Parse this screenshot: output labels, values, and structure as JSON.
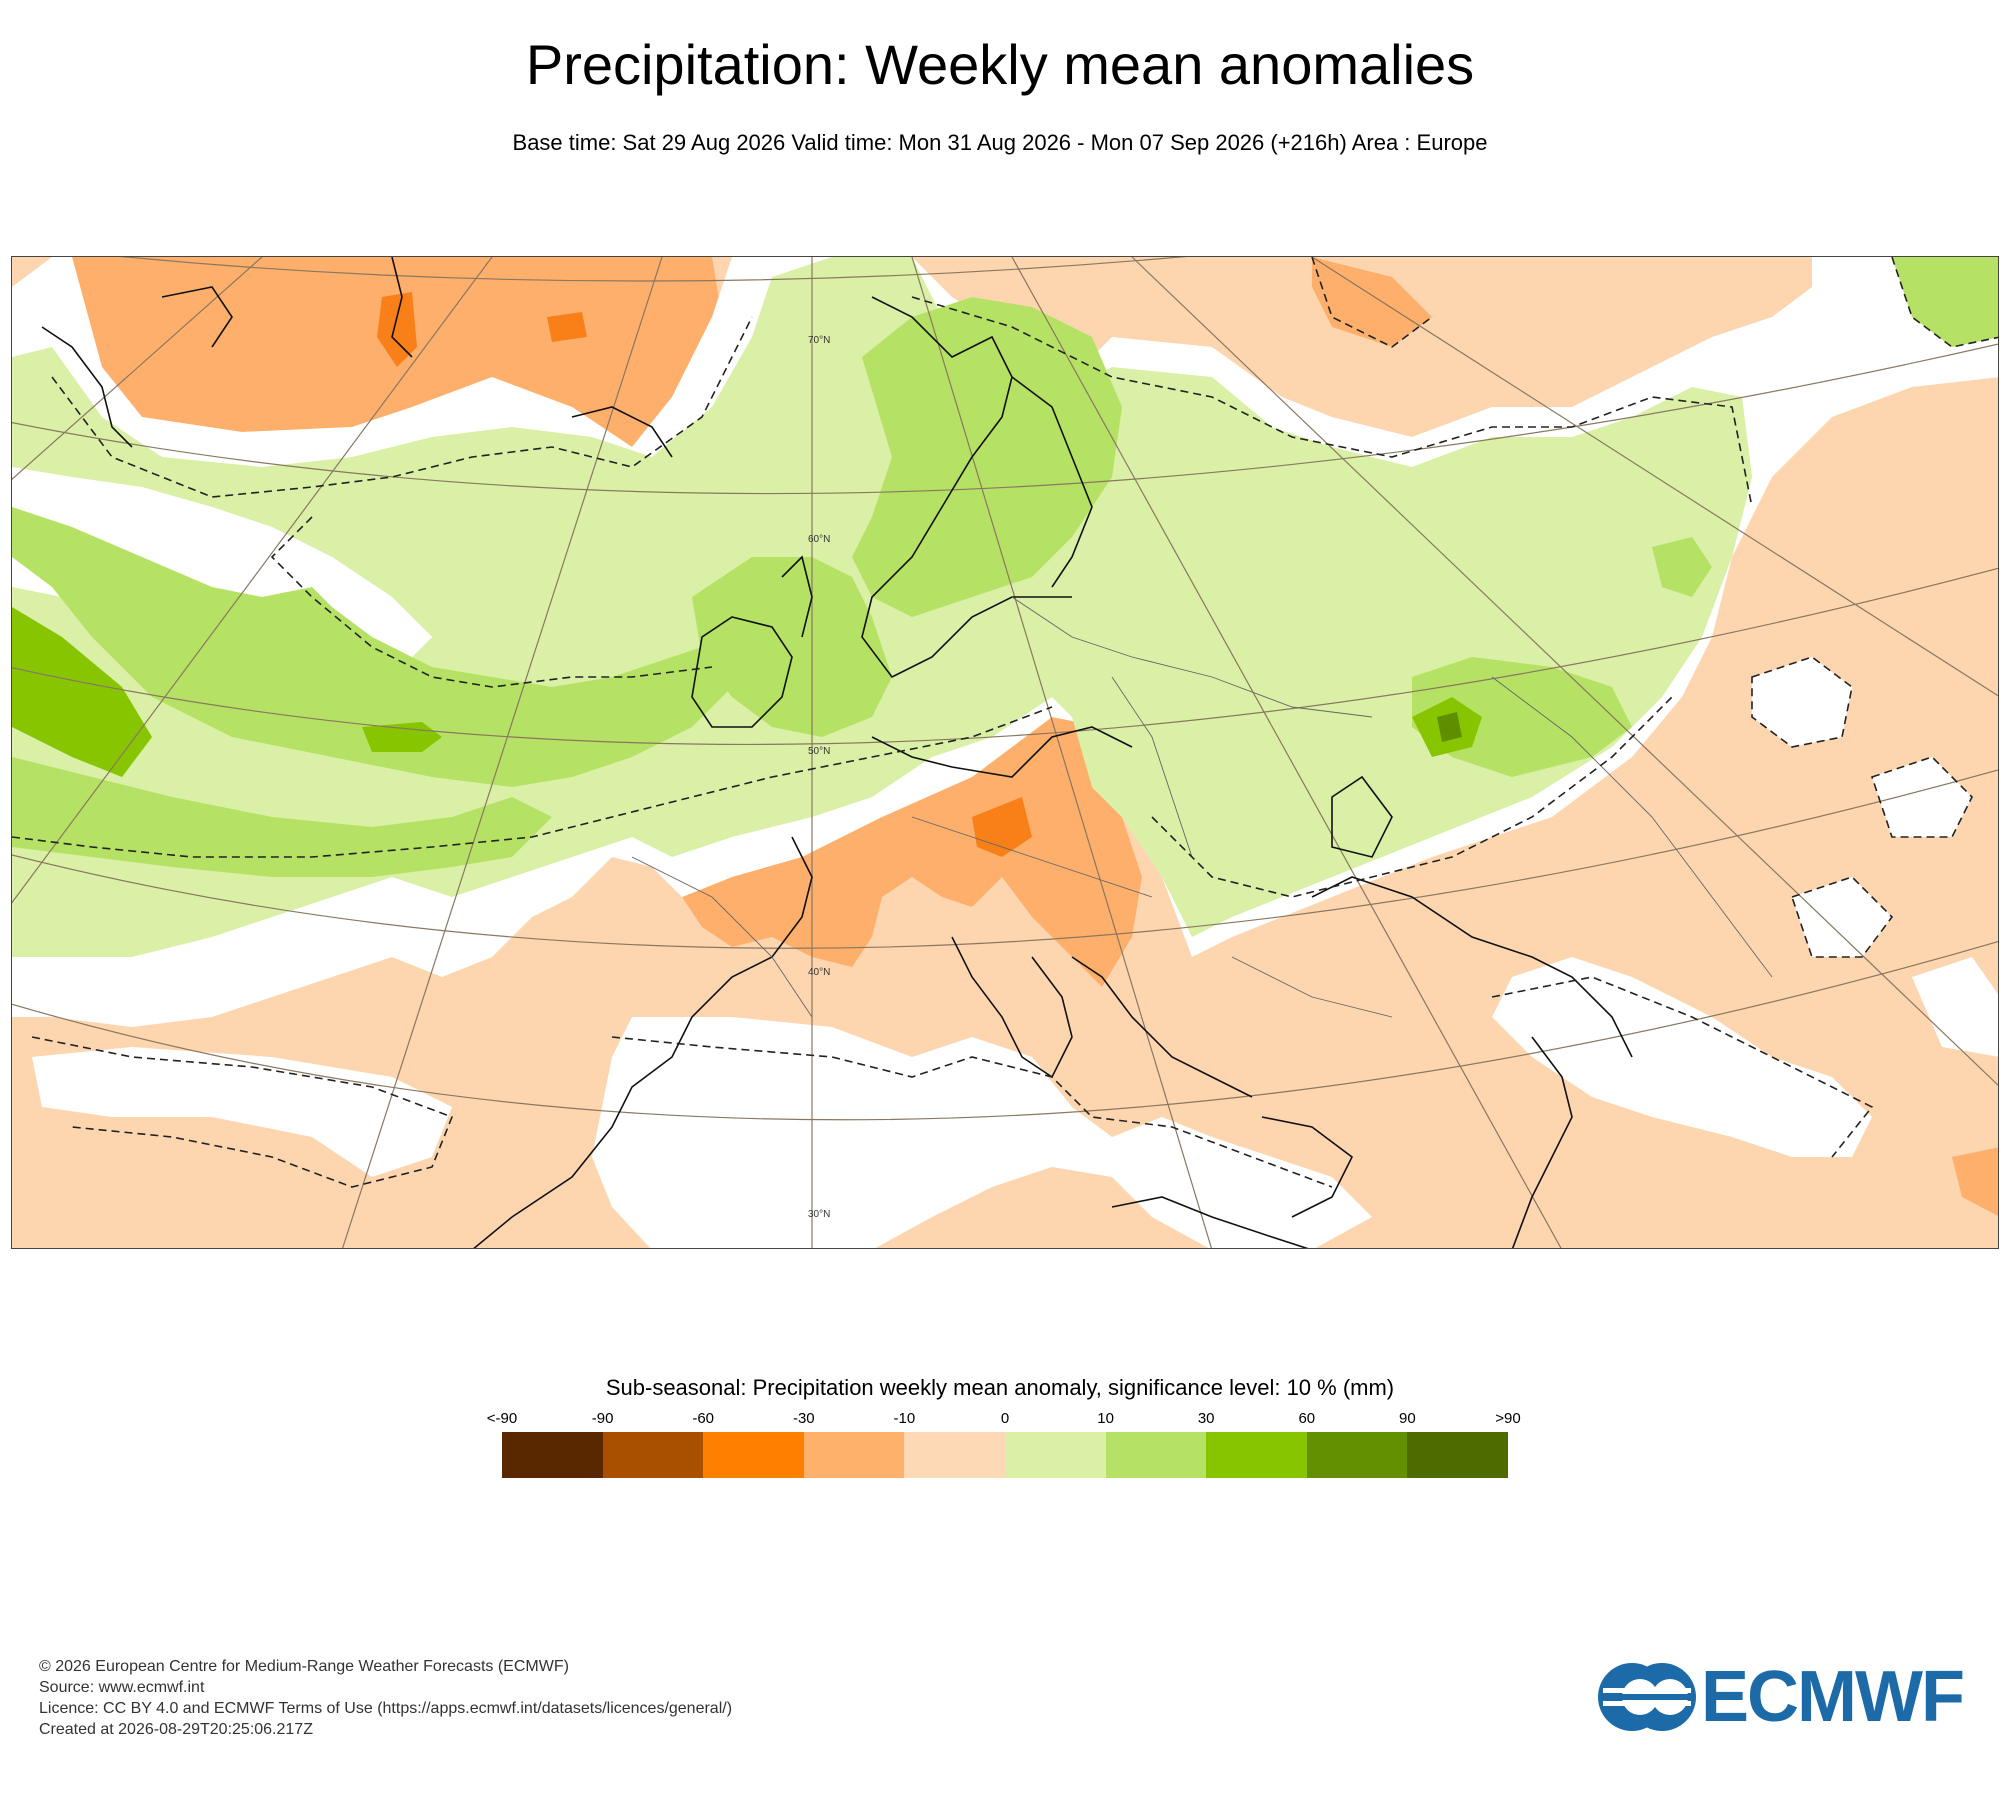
{
  "header": {
    "title": "Precipitation: Weekly mean anomalies",
    "subtitle": "Base time: Sat 29 Aug 2026 Valid time: Mon 31 Aug 2026 - Mon 07 Sep 2026 (+216h) Area : Europe"
  },
  "map": {
    "latitude_labels": [
      "70°N",
      "60°N",
      "50°N",
      "40°N",
      "30°N"
    ],
    "colors": {
      "background_dry": "#fdd6b0",
      "dry_moderate": "#fdaf6b",
      "dry_strong": "#f97f19",
      "neutral": "#ffffff",
      "wet_light": "#d9f0a6",
      "wet_moderate": "#b5e264",
      "wet_strong": "#86c500",
      "wet_very_strong": "#5f8f00",
      "coastline": "#111111",
      "graticule": "#8a7760"
    }
  },
  "legend": {
    "title": "Sub-seasonal: Precipitation weekly mean anomaly, significance level: 10 % (mm)",
    "ticks": [
      "<-90",
      "-90",
      "-60",
      "-30",
      "-10",
      "0",
      "10",
      "30",
      "60",
      "90",
      ">90"
    ],
    "colors": [
      "#5a2800",
      "#a85000",
      "#ff7f00",
      "#feb16b",
      "#fdd9b5",
      "#d9f0a6",
      "#b5e264",
      "#86c500",
      "#629000",
      "#4e6b00"
    ]
  },
  "footer": {
    "line1": "© 2026 European Centre for Medium-Range Weather Forecasts (ECMWF)",
    "line2": "Source: www.ecmwf.int",
    "line3": "Licence: CC BY 4.0 and ECMWF Terms of Use (https://apps.ecmwf.int/datasets/licences/general/)",
    "line4": "Created at 2026-08-29T20:25:06.217Z"
  },
  "logo": {
    "text": "ECMWF",
    "color": "#1d6aa8"
  }
}
